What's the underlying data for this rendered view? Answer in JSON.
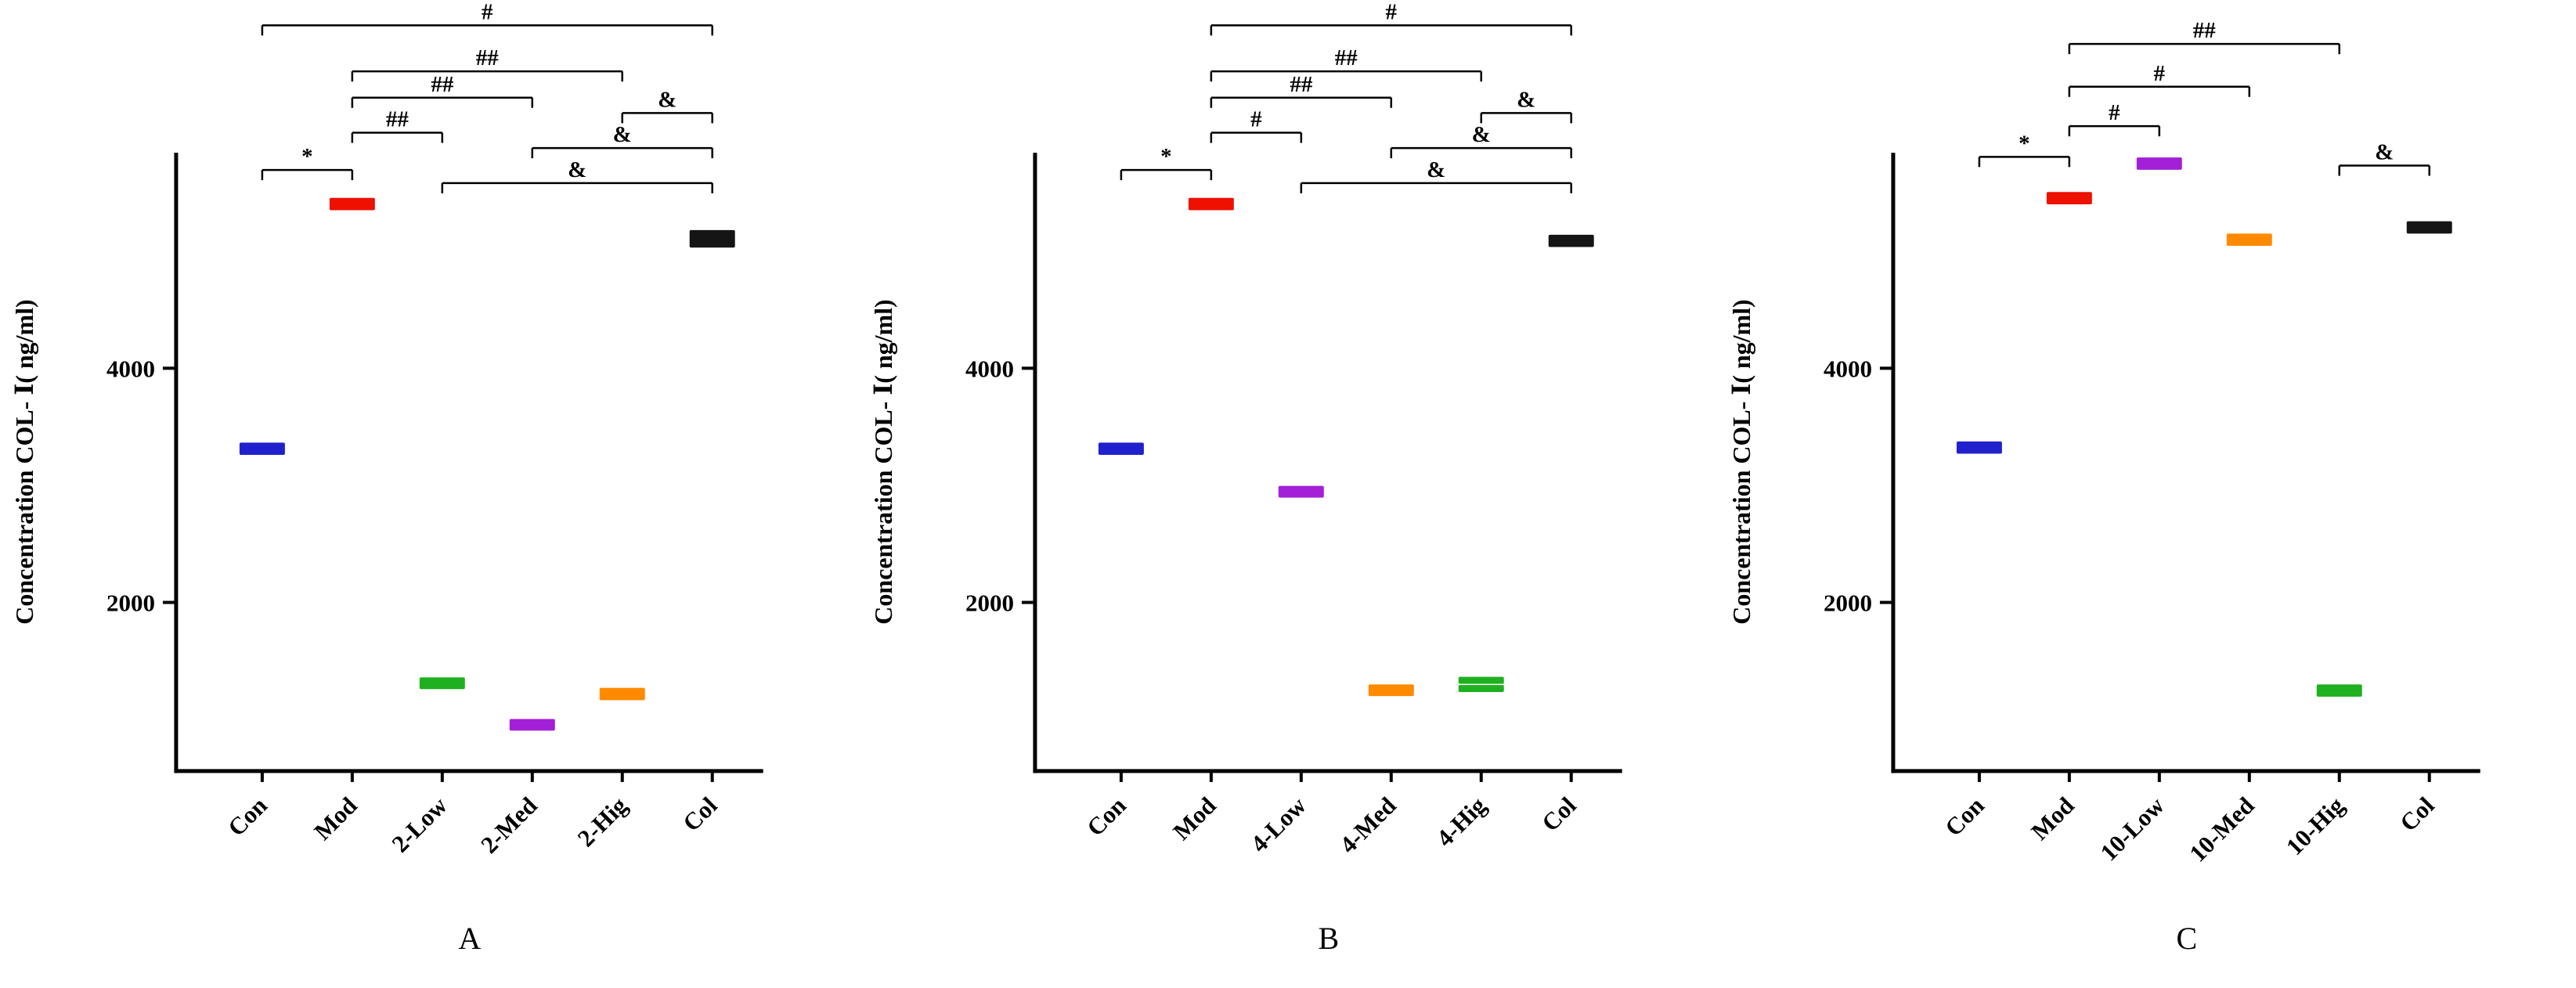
{
  "figure_background": "#ffffff",
  "axis_color": "#000000",
  "chart_data": [
    {
      "type": "scatter",
      "panel": "A",
      "title": "",
      "ylabel": "Concentration COL- Ⅰ( ng/ml)",
      "xlabel": "",
      "ylim": [
        560,
        5840
      ],
      "yticks": [
        2000,
        4000
      ],
      "grid": false,
      "legend": "none",
      "categories": [
        "Con",
        "Mod",
        "2-Low",
        "2-Med",
        "2-Hig",
        "Col"
      ],
      "series": [
        {
          "category": "Con",
          "color": "#2020cc",
          "points": [
            3290,
            3335
          ]
        },
        {
          "category": "Mod",
          "color": "#ee1100",
          "points": [
            5380,
            5425
          ]
        },
        {
          "category": "2-Low",
          "color": "#1fb01f",
          "points": [
            1290,
            1330
          ]
        },
        {
          "category": "2-Med",
          "color": "#a320d8",
          "points": [
            935,
            975
          ]
        },
        {
          "category": "2-Hig",
          "color": "#ff8a00",
          "points": [
            1195,
            1240
          ]
        },
        {
          "category": "Col",
          "color": "#151515",
          "points": [
            5060,
            5105,
            5150
          ]
        }
      ],
      "significance": [
        {
          "label": "#",
          "from": "Con",
          "to": "Col",
          "row": 7.6
        },
        {
          "label": "##",
          "from": "Mod",
          "to": "2-Hig",
          "row": 5.5
        },
        {
          "label": "##",
          "from": "Mod",
          "to": "2-Med",
          "row": 4.3
        },
        {
          "label": "##",
          "from": "Mod",
          "to": "2-Low",
          "row": 2.7
        },
        {
          "label": "*",
          "from": "Con",
          "to": "Mod",
          "row": 1
        },
        {
          "label": "&",
          "from": "2-Hig",
          "to": "Col",
          "row": 3.6
        },
        {
          "label": "&",
          "from": "2-Med",
          "to": "Col",
          "row": 2
        },
        {
          "label": "&",
          "from": "2-Low",
          "to": "Col",
          "row": 0.4
        }
      ]
    },
    {
      "type": "scatter",
      "panel": "B",
      "title": "",
      "ylabel": "Concentration COL- Ⅰ( ng/ml)",
      "xlabel": "",
      "ylim": [
        560,
        5840
      ],
      "yticks": [
        2000,
        4000
      ],
      "grid": false,
      "legend": "none",
      "categories": [
        "Con",
        "Mod",
        "4-Low",
        "4-Med",
        "4-Hig",
        "Col"
      ],
      "series": [
        {
          "category": "Con",
          "color": "#2020cc",
          "points": [
            3290,
            3335
          ]
        },
        {
          "category": "Mod",
          "color": "#ee1100",
          "points": [
            5380,
            5425
          ]
        },
        {
          "category": "4-Low",
          "color": "#a320d8",
          "points": [
            2925,
            2965
          ]
        },
        {
          "category": "4-Med",
          "color": "#ff8a00",
          "points": [
            1230,
            1270
          ]
        },
        {
          "category": "4-Hig",
          "color": "#1fb01f",
          "points": [
            1265,
            1335
          ]
        },
        {
          "category": "Col",
          "color": "#151515",
          "points": [
            5065,
            5110
          ]
        }
      ],
      "significance": [
        {
          "label": "#",
          "from": "Mod",
          "to": "Col",
          "row": 7.6
        },
        {
          "label": "##",
          "from": "Mod",
          "to": "4-Hig",
          "row": 5.5
        },
        {
          "label": "##",
          "from": "Mod",
          "to": "4-Med",
          "row": 4.3
        },
        {
          "label": "#",
          "from": "Mod",
          "to": "4-Low",
          "row": 2.7
        },
        {
          "label": "*",
          "from": "Con",
          "to": "Mod",
          "row": 1
        },
        {
          "label": "&",
          "from": "4-Hig",
          "to": "Col",
          "row": 3.6
        },
        {
          "label": "&",
          "from": "4-Med",
          "to": "Col",
          "row": 2
        },
        {
          "label": "&",
          "from": "4-Low",
          "to": "Col",
          "row": 0.4
        }
      ]
    },
    {
      "type": "scatter",
      "panel": "C",
      "title": "",
      "ylabel": "Concentration COL- Ⅰ( ng/ml)",
      "xlabel": "",
      "ylim": [
        560,
        5840
      ],
      "yticks": [
        2000,
        4000
      ],
      "grid": false,
      "legend": "none",
      "categories": [
        "Con",
        "Mod",
        "10-Low",
        "10-Med",
        "10-Hig",
        "Col"
      ],
      "series": [
        {
          "category": "Con",
          "color": "#2020cc",
          "points": [
            3300,
            3345
          ]
        },
        {
          "category": "Mod",
          "color": "#ee1100",
          "points": [
            5430,
            5475
          ]
        },
        {
          "category": "10-Low",
          "color": "#a320d8",
          "points": [
            5725,
            5770
          ]
        },
        {
          "category": "10-Med",
          "color": "#ff8a00",
          "points": [
            5075,
            5120
          ]
        },
        {
          "category": "10-Hig",
          "color": "#1fb01f",
          "points": [
            1225,
            1270
          ]
        },
        {
          "category": "Col",
          "color": "#151515",
          "points": [
            5180,
            5225
          ]
        }
      ],
      "significance": [
        {
          "label": "##",
          "from": "Mod",
          "to": "10-Hig",
          "row": 6.75
        },
        {
          "label": "#",
          "from": "Mod",
          "to": "10-Med",
          "row": 4.8
        },
        {
          "label": "#",
          "from": "Mod",
          "to": "10-Low",
          "row": 3
        },
        {
          "label": "*",
          "from": "Con",
          "to": "Mod",
          "row": 1.6
        },
        {
          "label": "&",
          "from": "10-Hig",
          "to": "Col",
          "row": 1.2
        }
      ]
    }
  ]
}
